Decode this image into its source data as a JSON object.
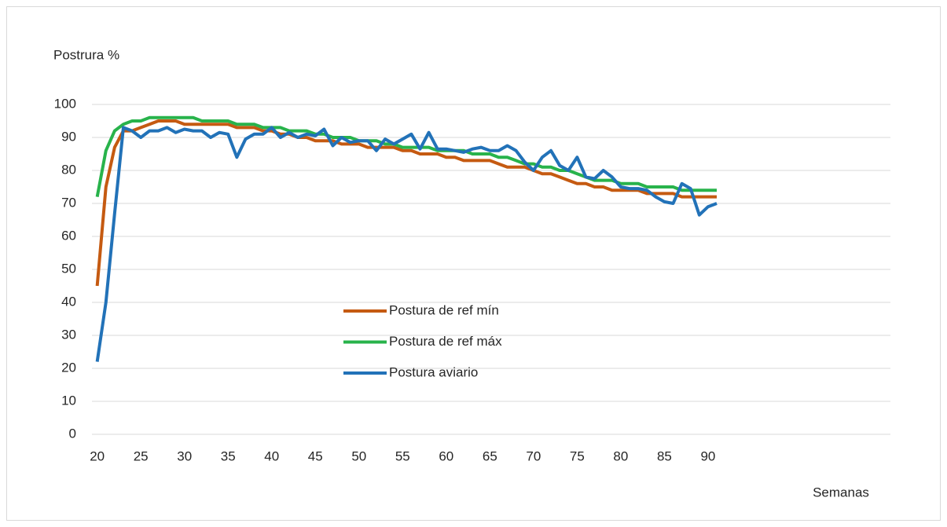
{
  "chart_data": {
    "type": "line",
    "ylabel": "Postrura %",
    "xlabel": "Semanas",
    "x": [
      20,
      21,
      22,
      23,
      24,
      25,
      26,
      27,
      28,
      29,
      30,
      31,
      32,
      33,
      34,
      35,
      36,
      37,
      38,
      39,
      40,
      41,
      42,
      43,
      44,
      45,
      46,
      47,
      48,
      49,
      50,
      51,
      52,
      53,
      54,
      55,
      56,
      57,
      58,
      59,
      60,
      61,
      62,
      63,
      64,
      65,
      66,
      67,
      68,
      69,
      70,
      71,
      72,
      73,
      74,
      75,
      76,
      77,
      78,
      79,
      80,
      81,
      82,
      83,
      84,
      85,
      86,
      87,
      88,
      89,
      90,
      91
    ],
    "series": [
      {
        "name": "Postura de ref mín",
        "color": "#c55a11",
        "values": [
          45,
          75,
          87,
          92,
          92,
          93,
          94,
          95,
          95,
          95,
          94,
          94,
          94,
          94,
          94,
          94,
          93,
          93,
          93,
          92,
          92,
          91,
          91,
          90,
          90,
          89,
          89,
          89,
          88,
          88,
          88,
          87,
          87,
          87,
          87,
          86,
          86,
          85,
          85,
          85,
          84,
          84,
          83,
          83,
          83,
          83,
          82,
          81,
          81,
          81,
          80,
          79,
          79,
          78,
          77,
          76,
          76,
          75,
          75,
          74,
          74,
          74,
          74,
          73,
          73,
          73,
          73,
          72,
          72,
          72,
          72,
          72
        ]
      },
      {
        "name": "Postura de ref máx",
        "color": "#28b34b",
        "values": [
          72,
          86,
          92,
          94,
          95,
          95,
          96,
          96,
          96,
          96,
          96,
          96,
          95,
          95,
          95,
          95,
          94,
          94,
          94,
          93,
          93,
          93,
          92,
          92,
          92,
          91,
          91,
          90,
          90,
          90,
          89,
          89,
          89,
          88,
          88,
          87,
          87,
          87,
          87,
          86,
          86,
          86,
          86,
          85,
          85,
          85,
          84,
          84,
          83,
          82,
          82,
          81,
          81,
          80,
          80,
          79,
          78,
          77,
          77,
          77,
          76,
          76,
          76,
          75,
          75,
          75,
          75,
          74,
          74,
          74,
          74,
          74
        ]
      },
      {
        "name": "Postura aviario",
        "color": "#2272b8",
        "values": [
          22,
          40,
          67,
          93,
          92,
          90,
          92,
          92,
          93,
          91.5,
          92.5,
          92,
          92,
          90,
          91.5,
          91,
          84,
          89.5,
          91,
          91,
          93,
          90,
          91.5,
          90,
          91,
          90.5,
          92.5,
          87.5,
          90,
          88.5,
          89,
          89,
          86,
          89.5,
          88,
          89.5,
          91,
          86.5,
          91.5,
          86.5,
          86.5,
          86,
          85.5,
          86.5,
          87,
          86,
          86,
          87.5,
          86,
          82.5,
          80,
          84,
          86,
          81.5,
          80,
          84,
          78,
          77.5,
          80,
          78,
          75,
          74.5,
          74.5,
          74,
          72,
          70.5,
          70,
          76,
          74.5,
          66.5,
          69,
          70
        ]
      }
    ],
    "xlim": [
      19.4,
      110.9
    ],
    "xticks": [
      20,
      25,
      30,
      35,
      40,
      45,
      50,
      55,
      60,
      65,
      70,
      75,
      80,
      85,
      90
    ],
    "ylim": [
      0,
      100
    ],
    "yticks": [
      0,
      10,
      20,
      30,
      40,
      50,
      60,
      70,
      80,
      90,
      100
    ],
    "grid": true,
    "legend": "center"
  }
}
